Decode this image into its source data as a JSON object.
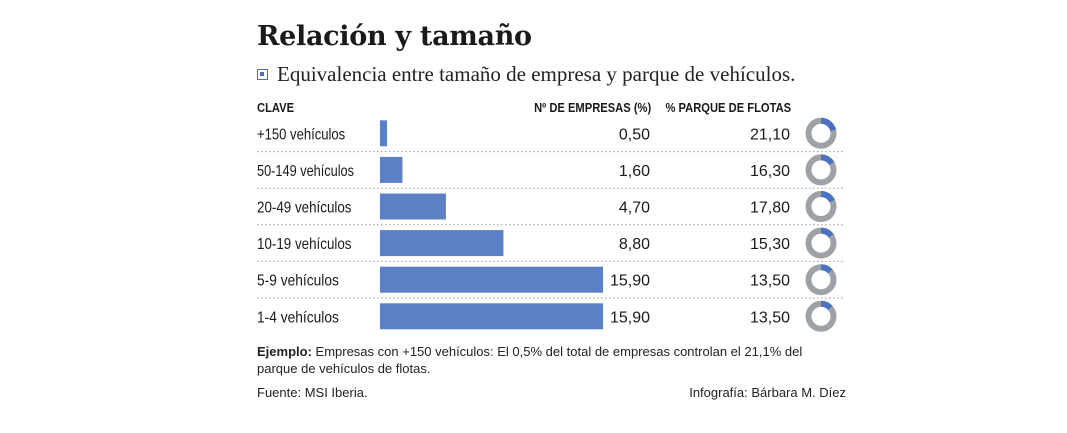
{
  "title": "Relación y tamaño",
  "subtitle": "Equivalencia entre tamaño de empresa y parque de vehículos.",
  "subtitle_icon": "square-bullet-icon",
  "headers": {
    "clave": "CLAVE",
    "empresas": "Nº DE EMPRESAS (%)",
    "flotas": "% PARQUE DE FLOTAS"
  },
  "chart_data": {
    "type": "bar",
    "orientation": "horizontal",
    "categories": [
      "+150 vehículos",
      "50-149 vehículos",
      "20-49 vehículos",
      "10-19 vehículos",
      "5-9 vehículos",
      "1-4 vehículos"
    ],
    "series": [
      {
        "name": "Nº DE EMPRESAS (%)",
        "values": [
          0.5,
          1.6,
          4.7,
          8.8,
          15.9,
          15.9
        ],
        "labels": [
          "0,50",
          "1,60",
          "4,70",
          "8,80",
          "15,90",
          "15,90"
        ]
      },
      {
        "name": "% PARQUE DE FLOTAS",
        "values": [
          21.1,
          16.3,
          17.8,
          15.3,
          13.5,
          13.5
        ],
        "labels": [
          "21,10",
          "16,30",
          "17,80",
          "15,30",
          "13,50",
          "13,50"
        ],
        "mark": "donut"
      }
    ],
    "xlim": [
      0,
      17.5
    ],
    "colors": {
      "bar": "#5b80c5",
      "donut_fill": "#4a72c2",
      "donut_rest": "#9ea2a6",
      "separator": "#9a9a9a"
    }
  },
  "note": {
    "label": "Ejemplo:",
    "text": " Empresas con +150 vehículos: El 0,5% del total de empresas controlan el 21,1% del parque de vehículos de flotas."
  },
  "source": "Fuente: MSI Iberia.",
  "credit": "Infografía: Bárbara M. Díez"
}
